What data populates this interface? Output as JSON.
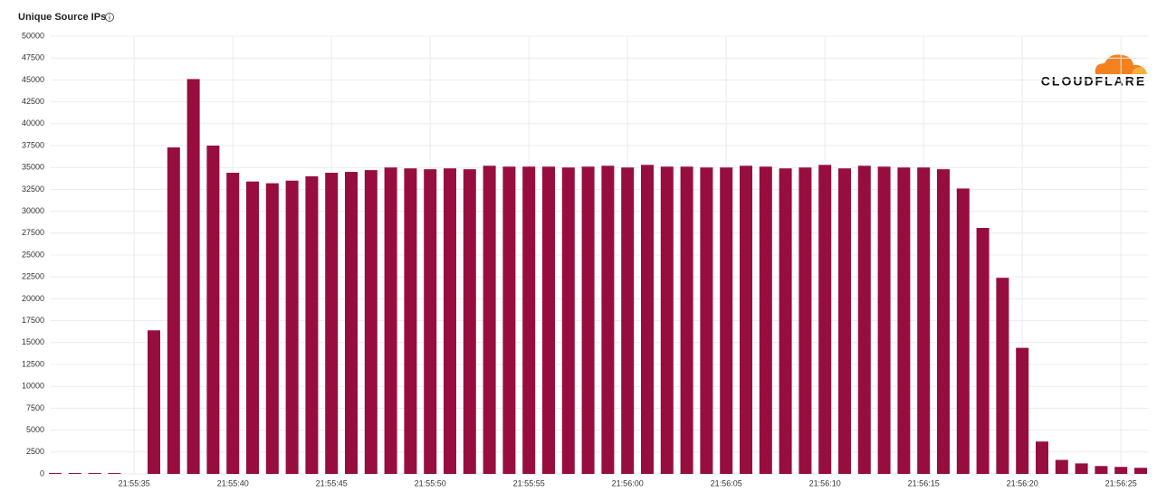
{
  "logo_text": "CLOUDFLARE",
  "chart_data": {
    "type": "bar",
    "title": "Unique Source IPs",
    "color": "#970e3e",
    "categories": [
      null,
      null,
      null,
      null,
      "21:55:35",
      null,
      null,
      null,
      null,
      "21:55:40",
      null,
      null,
      null,
      null,
      "21:55:45",
      null,
      null,
      null,
      null,
      "21:55:50",
      null,
      null,
      null,
      null,
      "21:55:55",
      null,
      null,
      null,
      null,
      "21:56:00",
      null,
      null,
      null,
      null,
      "21:56:05",
      null,
      null,
      null,
      null,
      "21:56:10",
      null,
      null,
      null,
      null,
      "21:56:15",
      null,
      null,
      null,
      null,
      "21:56:20",
      null,
      null,
      null,
      null,
      "21:56:25",
      null
    ],
    "values": [
      100,
      100,
      100,
      100,
      0,
      16400,
      37300,
      45100,
      37500,
      34400,
      33400,
      33200,
      33500,
      34000,
      34400,
      34500,
      34700,
      35000,
      34900,
      34800,
      34900,
      34800,
      35200,
      35100,
      35100,
      35100,
      35000,
      35100,
      35200,
      35000,
      35300,
      35100,
      35100,
      35000,
      35000,
      35200,
      35100,
      34900,
      35000,
      35300,
      34900,
      35200,
      35100,
      35000,
      35000,
      34800,
      32600,
      28100,
      22400,
      14400,
      3700,
      1600,
      1200,
      900,
      800,
      700
    ],
    "ylim": [
      0,
      50000
    ],
    "yticks": [
      0,
      2500,
      5000,
      7500,
      10000,
      12500,
      15000,
      17500,
      20000,
      22500,
      25000,
      27500,
      30000,
      32500,
      35000,
      37500,
      40000,
      42500,
      45000,
      47500,
      50000
    ],
    "grid": true
  }
}
